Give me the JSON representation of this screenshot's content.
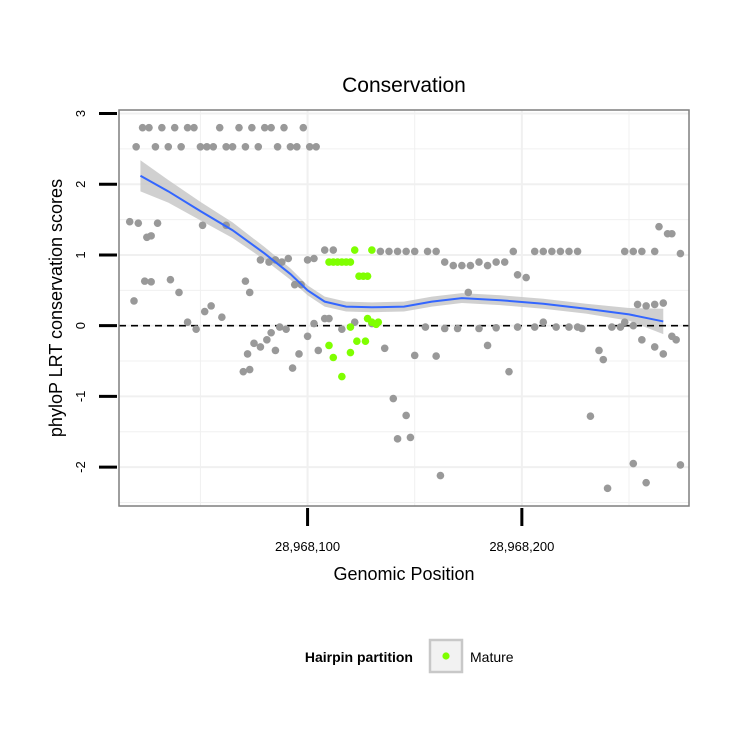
{
  "chart_data": {
    "type": "scatter",
    "title": "Conservation",
    "xlabel": "Genomic Position",
    "ylabel": "phyloP LRT conservation scores",
    "xlim": [
      28968012,
      28968278
    ],
    "ylim": [
      -2.55,
      3.05
    ],
    "x_ticks": [
      28968100,
      28968200
    ],
    "x_tick_labels": [
      "28,968,100",
      "28,968,200"
    ],
    "y_ticks": [
      -2,
      -1,
      0,
      1,
      2,
      3
    ],
    "y_tick_labels": [
      "-2",
      "-1",
      "0",
      "1",
      "2",
      "3"
    ],
    "reference_line": {
      "y": 0,
      "style": "dashed"
    },
    "grid": true,
    "legend": {
      "title": "Hairpin partition",
      "position": "bottom",
      "entries": [
        "Mature"
      ]
    },
    "colors": {
      "other": "#999999",
      "mature": "#7fff00",
      "smooth": "#3366ff",
      "ribbon": "#c8c8c8",
      "panel_border": "#7f7f7f"
    },
    "series": [
      {
        "role": "other",
        "points": [
          [
            28968020,
            2.53
          ],
          [
            28968023,
            2.8
          ],
          [
            28968026,
            2.8
          ],
          [
            28968029,
            2.53
          ],
          [
            28968032,
            2.8
          ],
          [
            28968035,
            2.53
          ],
          [
            28968038,
            2.8
          ],
          [
            28968041,
            2.53
          ],
          [
            28968044,
            2.8
          ],
          [
            28968047,
            2.8
          ],
          [
            28968050,
            2.53
          ],
          [
            28968053,
            2.53
          ],
          [
            28968056,
            2.53
          ],
          [
            28968059,
            2.8
          ],
          [
            28968062,
            2.53
          ],
          [
            28968065,
            2.53
          ],
          [
            28968068,
            2.8
          ],
          [
            28968071,
            2.53
          ],
          [
            28968074,
            2.8
          ],
          [
            28968077,
            2.53
          ],
          [
            28968080,
            2.8
          ],
          [
            28968083,
            2.8
          ],
          [
            28968086,
            2.53
          ],
          [
            28968089,
            2.8
          ],
          [
            28968092,
            2.53
          ],
          [
            28968095,
            2.53
          ],
          [
            28968098,
            2.8
          ],
          [
            28968101,
            2.53
          ],
          [
            28968104,
            2.53
          ],
          [
            28968017,
            1.47
          ],
          [
            28968021,
            1.45
          ],
          [
            28968030,
            1.45
          ],
          [
            28968025,
            1.25
          ],
          [
            28968027,
            1.27
          ],
          [
            28968051,
            1.42
          ],
          [
            28968062,
            1.42
          ],
          [
            28968024,
            0.63
          ],
          [
            28968027,
            0.62
          ],
          [
            28968036,
            0.65
          ],
          [
            28968040,
            0.47
          ],
          [
            28968019,
            0.35
          ],
          [
            28968044,
            0.05
          ],
          [
            28968048,
            -0.05
          ],
          [
            28968052,
            0.2
          ],
          [
            28968055,
            0.28
          ],
          [
            28968060,
            0.12
          ],
          [
            28968071,
            0.63
          ],
          [
            28968073,
            0.47
          ],
          [
            28968070,
            -0.65
          ],
          [
            28968073,
            -0.62
          ],
          [
            28968072,
            -0.4
          ],
          [
            28968075,
            -0.25
          ],
          [
            28968078,
            -0.3
          ],
          [
            28968081,
            -0.2
          ],
          [
            28968083,
            -0.1
          ],
          [
            28968085,
            -0.35
          ],
          [
            28968087,
            -0.02
          ],
          [
            28968090,
            -0.05
          ],
          [
            28968093,
            -0.6
          ],
          [
            28968096,
            -0.4
          ],
          [
            28968100,
            -0.15
          ],
          [
            28968103,
            0.03
          ],
          [
            28968105,
            -0.35
          ],
          [
            28968108,
            0.1
          ],
          [
            28968078,
            0.93
          ],
          [
            28968082,
            0.9
          ],
          [
            28968085,
            0.93
          ],
          [
            28968088,
            0.9
          ],
          [
            28968091,
            0.95
          ],
          [
            28968094,
            0.58
          ],
          [
            28968097,
            0.58
          ],
          [
            28968100,
            0.93
          ],
          [
            28968103,
            0.95
          ],
          [
            28968108,
            1.07
          ],
          [
            28968112,
            1.07
          ],
          [
            28968110,
            0.1
          ],
          [
            28968116,
            -0.05
          ],
          [
            28968122,
            0.05
          ],
          [
            28968130,
            0.03
          ],
          [
            28968134,
            1.05
          ],
          [
            28968138,
            1.05
          ],
          [
            28968142,
            1.05
          ],
          [
            28968146,
            1.05
          ],
          [
            28968150,
            1.05
          ],
          [
            28968156,
            1.05
          ],
          [
            28968160,
            1.05
          ],
          [
            28968164,
            0.9
          ],
          [
            28968168,
            0.85
          ],
          [
            28968172,
            0.85
          ],
          [
            28968176,
            0.85
          ],
          [
            28968180,
            0.9
          ],
          [
            28968184,
            0.85
          ],
          [
            28968188,
            0.9
          ],
          [
            28968192,
            0.9
          ],
          [
            28968196,
            1.05
          ],
          [
            28968198,
            0.72
          ],
          [
            28968202,
            0.68
          ],
          [
            28968206,
            1.05
          ],
          [
            28968210,
            1.05
          ],
          [
            28968214,
            1.05
          ],
          [
            28968218,
            1.05
          ],
          [
            28968222,
            1.05
          ],
          [
            28968226,
            1.05
          ],
          [
            28968136,
            -0.32
          ],
          [
            28968140,
            -1.03
          ],
          [
            28968142,
            -1.6
          ],
          [
            28968146,
            -1.27
          ],
          [
            28968148,
            -1.58
          ],
          [
            28968150,
            -0.42
          ],
          [
            28968155,
            -0.02
          ],
          [
            28968160,
            -0.43
          ],
          [
            28968162,
            -2.12
          ],
          [
            28968164,
            -0.04
          ],
          [
            28968170,
            -0.04
          ],
          [
            28968175,
            0.47
          ],
          [
            28968180,
            -0.04
          ],
          [
            28968184,
            -0.28
          ],
          [
            28968188,
            -0.03
          ],
          [
            28968194,
            -0.65
          ],
          [
            28968198,
            -0.02
          ],
          [
            28968206,
            -0.02
          ],
          [
            28968210,
            0.05
          ],
          [
            28968216,
            -0.02
          ],
          [
            28968222,
            -0.02
          ],
          [
            28968226,
            -0.02
          ],
          [
            28968228,
            -0.04
          ],
          [
            28968232,
            -1.28
          ],
          [
            28968236,
            -0.35
          ],
          [
            28968238,
            -0.48
          ],
          [
            28968240,
            -2.3
          ],
          [
            28968242,
            -0.02
          ],
          [
            28968246,
            -0.02
          ],
          [
            28968248,
            1.05
          ],
          [
            28968252,
            1.05
          ],
          [
            28968256,
            1.05
          ],
          [
            28968262,
            1.05
          ],
          [
            28968252,
            -1.95
          ],
          [
            28968258,
            -2.22
          ],
          [
            28968254,
            0.3
          ],
          [
            28968258,
            0.28
          ],
          [
            28968262,
            0.3
          ],
          [
            28968266,
            0.32
          ],
          [
            28968256,
            -0.2
          ],
          [
            28968262,
            -0.3
          ],
          [
            28968266,
            -0.4
          ],
          [
            28968270,
            -0.15
          ],
          [
            28968272,
            -0.2
          ],
          [
            28968268,
            1.3
          ],
          [
            28968270,
            1.3
          ],
          [
            28968264,
            1.4
          ],
          [
            28968274,
            1.02
          ],
          [
            28968274,
            -1.97
          ],
          [
            28968248,
            0.05
          ],
          [
            28968252,
            0.0
          ]
        ]
      },
      {
        "role": "mature",
        "name": "Mature",
        "points": [
          [
            28968110,
            0.9
          ],
          [
            28968112,
            0.9
          ],
          [
            28968114,
            0.9
          ],
          [
            28968116,
            0.9
          ],
          [
            28968118,
            0.9
          ],
          [
            28968120,
            0.9
          ],
          [
            28968122,
            1.07
          ],
          [
            28968124,
            0.7
          ],
          [
            28968126,
            0.7
          ],
          [
            28968128,
            0.7
          ],
          [
            28968130,
            1.07
          ],
          [
            28968128,
            0.1
          ],
          [
            28968130,
            0.05
          ],
          [
            28968132,
            0.02
          ],
          [
            28968133,
            0.05
          ],
          [
            28968120,
            -0.02
          ],
          [
            28968110,
            -0.28
          ],
          [
            28968112,
            -0.45
          ],
          [
            28968116,
            -0.72
          ],
          [
            28968120,
            -0.38
          ],
          [
            28968123,
            -0.22
          ],
          [
            28968127,
            -0.22
          ]
        ]
      }
    ],
    "smooth": {
      "x": [
        28968022,
        28968035,
        28968050,
        28968065,
        28968080,
        28968092,
        28968100,
        28968108,
        28968118,
        28968130,
        28968145,
        28968158,
        28968172,
        28968190,
        28968210,
        28968230,
        28968250,
        28968266
      ],
      "y": [
        2.12,
        1.9,
        1.62,
        1.35,
        1.02,
        0.73,
        0.5,
        0.34,
        0.27,
        0.26,
        0.27,
        0.34,
        0.39,
        0.36,
        0.31,
        0.24,
        0.16,
        0.06
      ],
      "se": [
        0.22,
        0.16,
        0.13,
        0.11,
        0.09,
        0.08,
        0.07,
        0.07,
        0.07,
        0.07,
        0.07,
        0.07,
        0.07,
        0.07,
        0.07,
        0.07,
        0.09,
        0.18
      ]
    }
  }
}
